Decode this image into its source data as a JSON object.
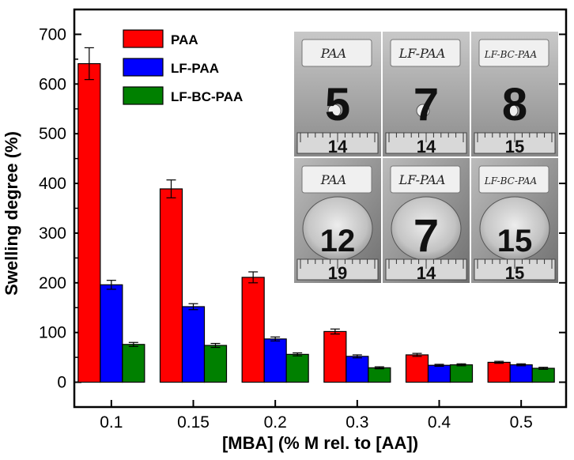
{
  "chart_data": {
    "type": "bar",
    "title": "",
    "xlabel": "[MBA] (% M rel. to [AA])",
    "ylabel": "Swelling degree (%)",
    "ylim": [
      -50,
      750
    ],
    "yticks": [
      0,
      100,
      200,
      300,
      400,
      500,
      600,
      700
    ],
    "ytick_labels": [
      "0",
      "100",
      "200",
      "300",
      "400",
      "500",
      "600",
      "700"
    ],
    "categories": [
      "0.1",
      "0.15",
      "0.2",
      "0.3",
      "0.4",
      "0.5"
    ],
    "legend_position": "top-left",
    "series": [
      {
        "name": "PAA",
        "color": "#ff0000",
        "values": [
          641,
          389,
          211,
          102,
          55,
          40
        ],
        "errors": [
          32,
          18,
          11,
          5,
          3,
          2
        ]
      },
      {
        "name": "LF-PAA",
        "color": "#0000ff",
        "values": [
          196,
          152,
          87,
          52,
          34,
          35
        ],
        "errors": [
          9,
          6,
          4,
          3,
          2,
          2
        ]
      },
      {
        "name": "LF-BC-PAA",
        "color": "#008000",
        "values": [
          76,
          74,
          56,
          29,
          35,
          28
        ],
        "errors": [
          4,
          4,
          3,
          2,
          2,
          2
        ]
      }
    ]
  },
  "inset": {
    "top_row": [
      {
        "tag": "PAA",
        "number": "5",
        "ruler": "14"
      },
      {
        "tag": "LF-PAA",
        "number": "7",
        "ruler": "14"
      },
      {
        "tag": "LF-BC-PAA",
        "number": "8",
        "ruler": "15"
      }
    ],
    "bottom_row": [
      {
        "tag": "PAA",
        "number": "12",
        "ruler": "19"
      },
      {
        "tag": "LF-PAA",
        "number": "7",
        "ruler": "14"
      },
      {
        "tag": "LF-BC-PAA",
        "number": "15",
        "ruler": "15"
      }
    ]
  }
}
